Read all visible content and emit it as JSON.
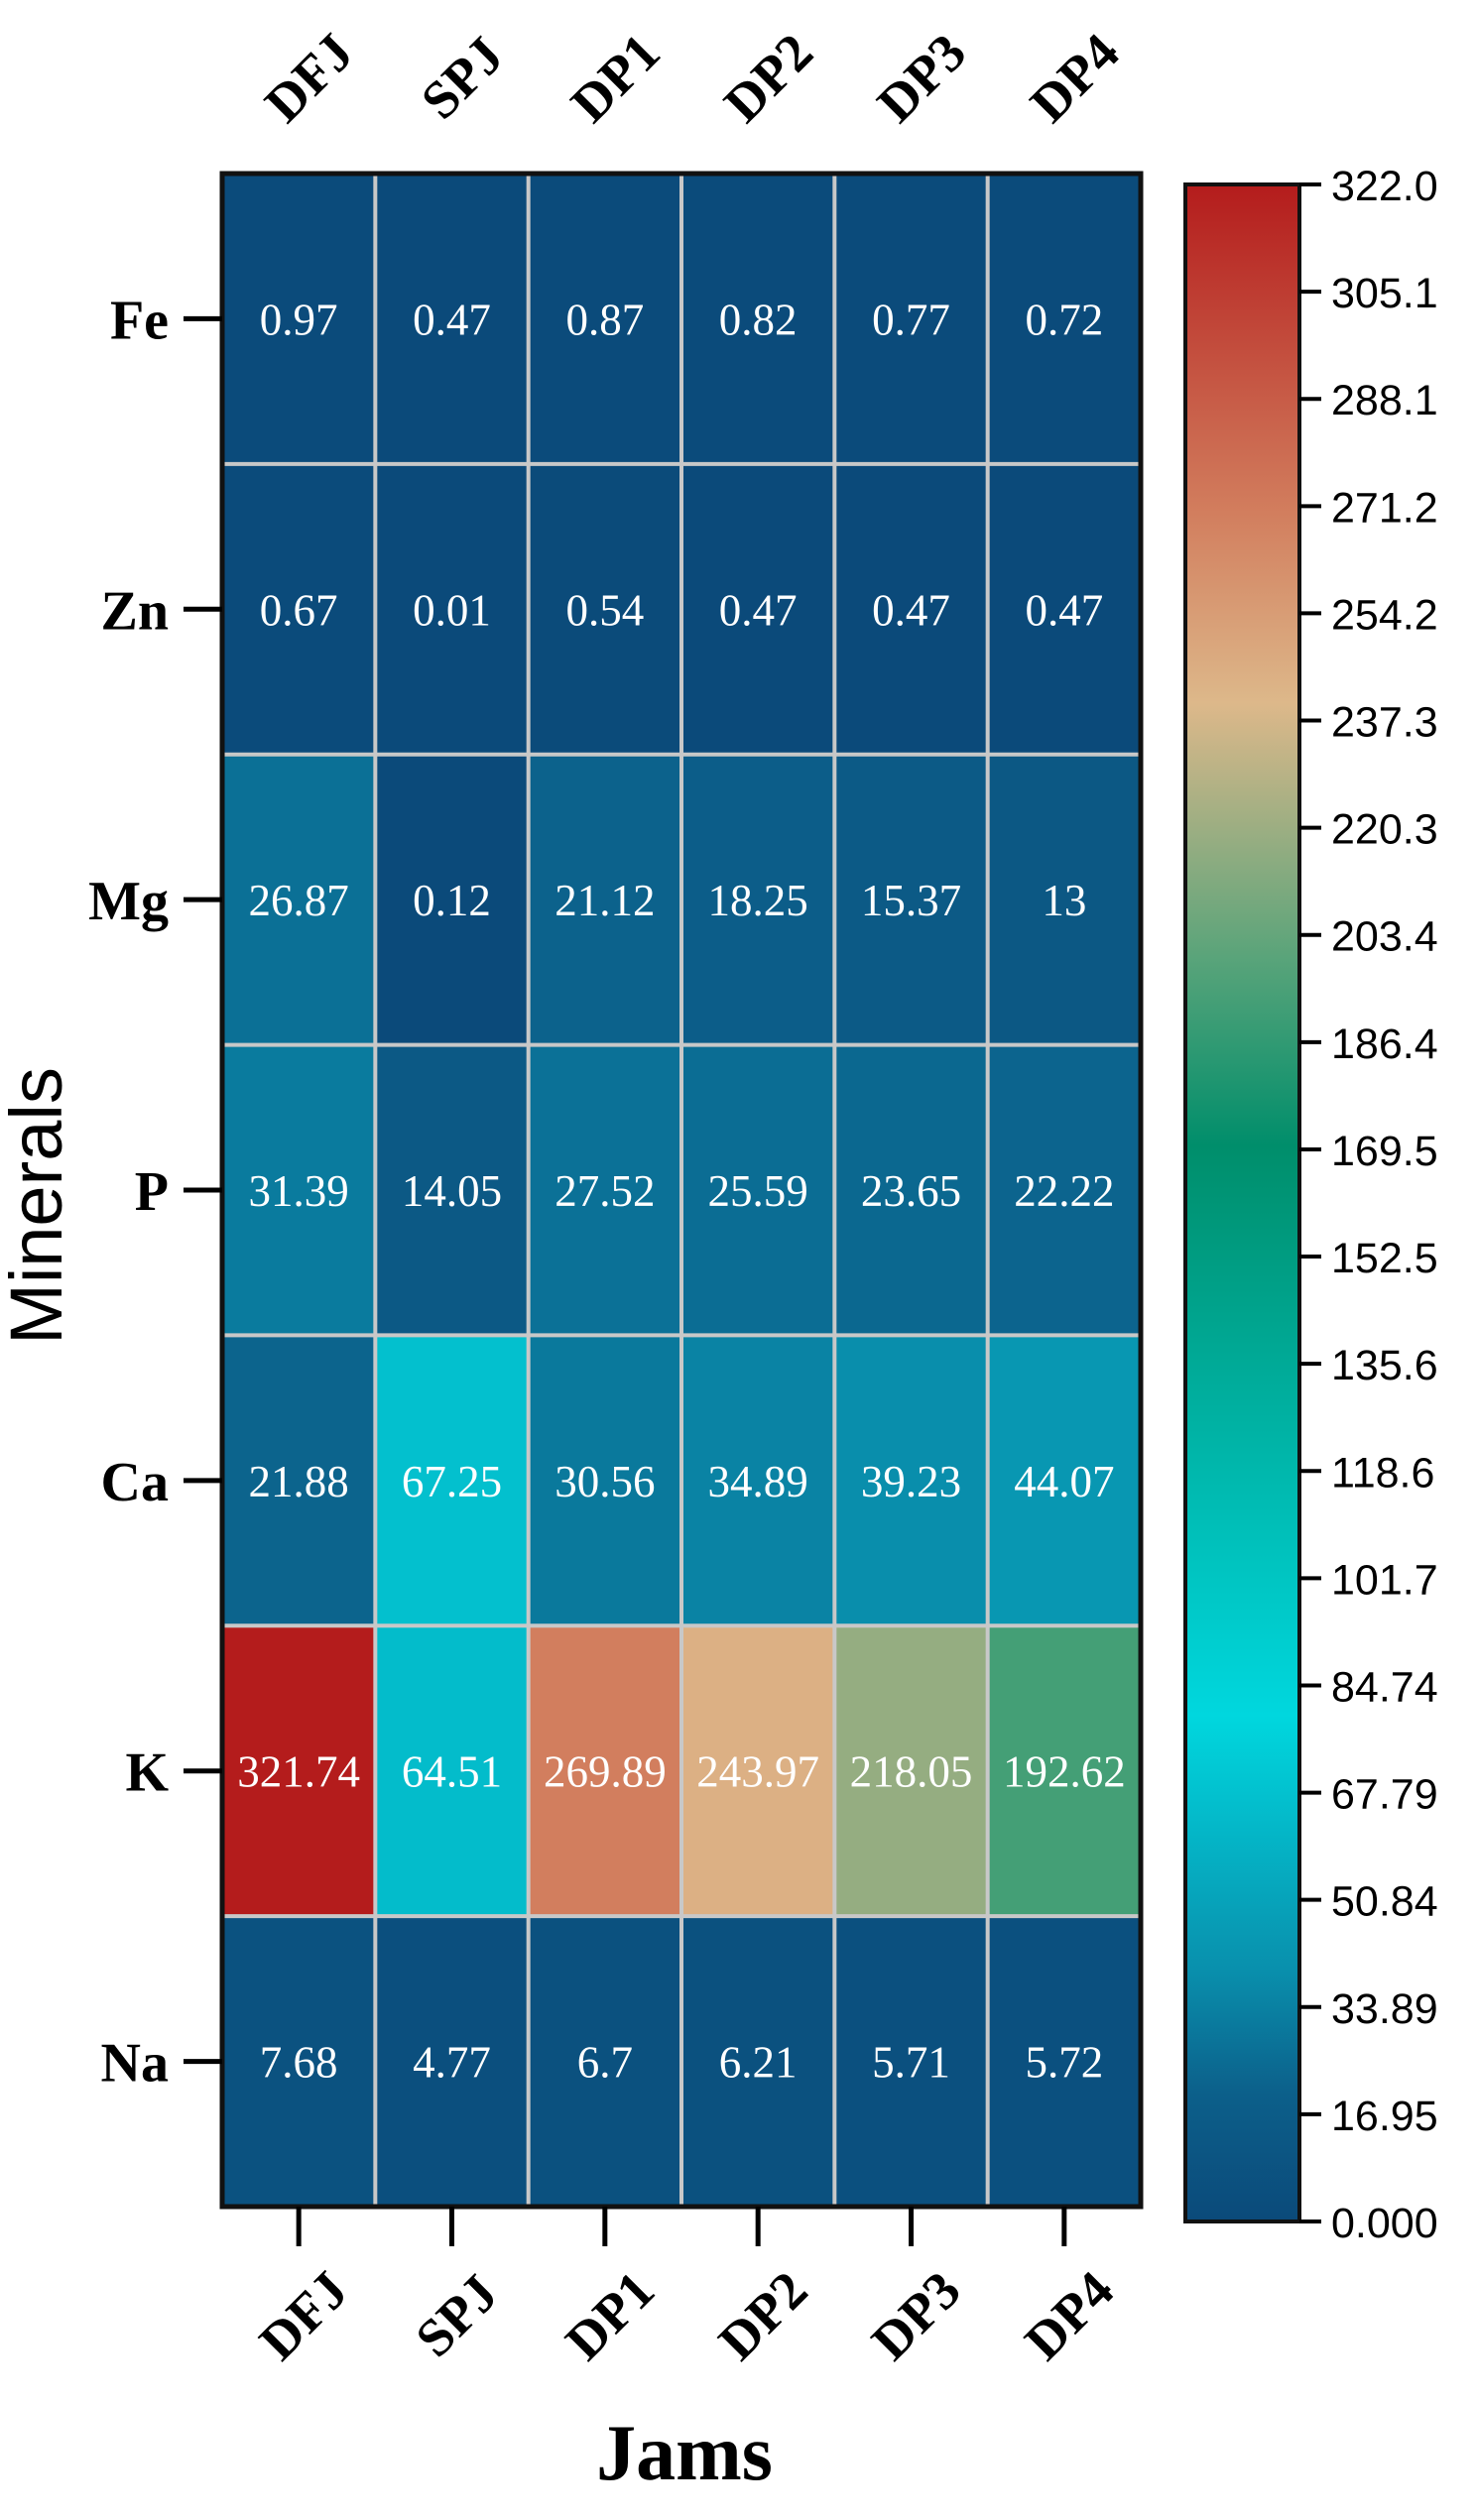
{
  "chart_data": {
    "type": "heatmap",
    "title": "",
    "xlabel": "Jams",
    "ylabel": "Minerals",
    "columns": [
      "DFJ",
      "SPJ",
      "DP1",
      "DP2",
      "DP3",
      "DP4"
    ],
    "rows": [
      "Fe",
      "Zn",
      "Mg",
      "P",
      "Ca",
      "K",
      "Na"
    ],
    "cells": [
      [
        "0.97",
        "0.47",
        "0.87",
        "0.82",
        "0.77",
        "0.72"
      ],
      [
        "0.67",
        "0.01",
        "0.54",
        "0.47",
        "0.47",
        "0.47"
      ],
      [
        "26.87",
        "0.12",
        "21.12",
        "18.25",
        "15.37",
        "13"
      ],
      [
        "31.39",
        "14.05",
        "27.52",
        "25.59",
        "23.65",
        "22.22"
      ],
      [
        "21.88",
        "67.25",
        "30.56",
        "34.89",
        "39.23",
        "44.07"
      ],
      [
        "321.74",
        "64.51",
        "269.89",
        "243.97",
        "218.05",
        "192.62"
      ],
      [
        "7.68",
        "4.77",
        "6.7",
        "6.21",
        "5.71",
        "5.72"
      ]
    ],
    "colorbar": {
      "range": [
        0,
        322.0
      ],
      "ticks": [
        "322.0",
        "305.1",
        "288.1",
        "271.2",
        "254.2",
        "237.3",
        "220.3",
        "203.4",
        "186.4",
        "169.5",
        "152.5",
        "135.6",
        "118.6",
        "101.7",
        "84.74",
        "67.79",
        "50.84",
        "33.89",
        "16.95",
        "0.000"
      ],
      "stops": [
        {
          "v": 0,
          "color": "#0b4a7a"
        },
        {
          "v": 20,
          "color": "#0c5f8a"
        },
        {
          "v": 40,
          "color": "#0990ad"
        },
        {
          "v": 80,
          "color": "#00d7de"
        },
        {
          "v": 170,
          "color": "#008e6b"
        },
        {
          "v": 200,
          "color": "#5aa47a"
        },
        {
          "v": 240,
          "color": "#ddb88a"
        },
        {
          "v": 270,
          "color": "#d27e5e"
        },
        {
          "v": 322,
          "color": "#b41c1c"
        }
      ]
    }
  }
}
